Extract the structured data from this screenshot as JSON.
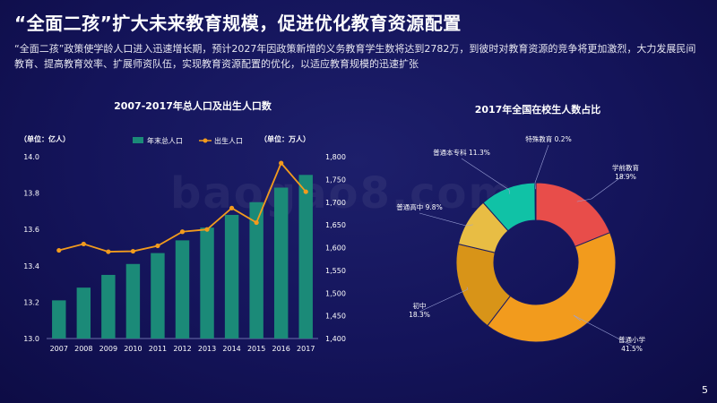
{
  "title": "“全面二孩”扩大未来教育规模，促进优化教育资源配置",
  "description": "“全面二孩”政策使学龄人口进入迅速增长期，预计2027年因政策新增的义务教育学生数将达到2782万，到彼时对教育资源的竞争将更加激烈，大力发展民间教育、提高教育效率、扩展师资队伍，实现教育资源配置的优化，以适应教育规模的迅速扩张",
  "page_number": "5",
  "watermark": "baogao8.com",
  "colors": {
    "bar": "#1b8a78",
    "line": "#f29b1d",
    "grid": "#2f3478"
  },
  "chart_data": [
    {
      "type": "bar",
      "title": "2007-2017年总人口及出生人口数",
      "left_unit_label": "（单位：亿人）",
      "right_unit_label": "（单位：万人）",
      "categories": [
        "2007",
        "2008",
        "2009",
        "2010",
        "2011",
        "2012",
        "2013",
        "2014",
        "2015",
        "2016",
        "2017"
      ],
      "series": [
        {
          "name": "年末总人口",
          "type": "bar",
          "axis": "left",
          "values": [
            13.21,
            13.28,
            13.35,
            13.41,
            13.47,
            13.54,
            13.61,
            13.68,
            13.75,
            13.83,
            13.9
          ]
        },
        {
          "name": "出生人口",
          "type": "line",
          "axis": "right",
          "values": [
            1594,
            1608,
            1591,
            1592,
            1604,
            1635,
            1640,
            1687,
            1655,
            1786,
            1723
          ]
        }
      ],
      "ylim_left": [
        13.0,
        14.0
      ],
      "yticks_left": [
        "13.0",
        "13.2",
        "13.4",
        "13.6",
        "13.8",
        "14.0"
      ],
      "ylim_right": [
        1400,
        1800
      ],
      "yticks_right": [
        "1,400",
        "1,450",
        "1,500",
        "1,550",
        "1,600",
        "1,650",
        "1,700",
        "1,750",
        "1,800"
      ],
      "legend_position": "top-center",
      "grid": false
    },
    {
      "type": "pie",
      "title": "2017年全国在校生人数占比",
      "donut": true,
      "slices": [
        {
          "label": "学前教育",
          "value": 18.9,
          "value_label": "18.9%",
          "color": "#e84d4a"
        },
        {
          "label": "普通小学",
          "value": 41.5,
          "value_label": "41.5%",
          "color": "#f29b1d"
        },
        {
          "label": "初中",
          "value": 18.3,
          "value_label": "18.3%",
          "color": "#d89418"
        },
        {
          "label": "普通高中",
          "value": 9.8,
          "value_label": "9.8%",
          "color": "#e8bd44"
        },
        {
          "label": "普通本专科",
          "value": 11.3,
          "value_label": "11.3%",
          "color": "#10c2a6"
        },
        {
          "label": "特殊教育",
          "value": 0.2,
          "value_label": "0.2%",
          "color": "#2ca0d8"
        }
      ]
    }
  ]
}
